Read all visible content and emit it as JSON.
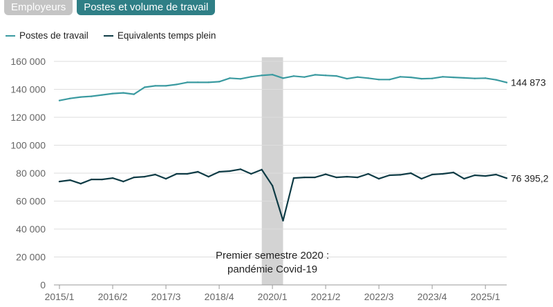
{
  "tabs": [
    {
      "label": "Employeurs",
      "active": false
    },
    {
      "label": "Postes et volume de travail",
      "active": true
    }
  ],
  "colors": {
    "postes": "#3a9aa0",
    "etp": "#0e3b45",
    "tab_active": "#2f7f86",
    "tab_inactive": "#c4c4c4",
    "covid_band": "#d3d3d3"
  },
  "chart_data": {
    "type": "line",
    "x": [
      "2015/1",
      "2015/2",
      "2015/3",
      "2015/4",
      "2016/1",
      "2016/2",
      "2016/3",
      "2016/4",
      "2017/1",
      "2017/2",
      "2017/3",
      "2017/4",
      "2018/1",
      "2018/2",
      "2018/3",
      "2018/4",
      "2019/1",
      "2019/2",
      "2019/3",
      "2019/4",
      "2020/1",
      "2020/2",
      "2020/3",
      "2020/4",
      "2021/1",
      "2021/2",
      "2021/3",
      "2021/4",
      "2022/1",
      "2022/2",
      "2022/3",
      "2022/4",
      "2023/1",
      "2023/2",
      "2023/3",
      "2023/4",
      "2024/1",
      "2024/2",
      "2024/3",
      "2024/4",
      "2025/1",
      "2025/2",
      "2025/3"
    ],
    "x_ticks": [
      "2015/1",
      "2016/2",
      "2017/3",
      "2018/4",
      "2020/1",
      "2021/2",
      "2022/3",
      "2023/4",
      "2025/1"
    ],
    "series": [
      {
        "name": "Postes de travail",
        "color": "#3a9aa0",
        "values": [
          132000,
          133500,
          134500,
          135000,
          136000,
          137000,
          137500,
          136500,
          141500,
          142500,
          142500,
          143500,
          145000,
          145000,
          145000,
          145500,
          148000,
          147500,
          149000,
          150000,
          150500,
          148000,
          149500,
          148800,
          150400,
          150000,
          149600,
          147600,
          148800,
          148000,
          147000,
          147000,
          149000,
          148600,
          147600,
          147800,
          149000,
          148600,
          148200,
          147800,
          148000,
          146800,
          144873
        ]
      },
      {
        "name": "Equivalents temps plein",
        "color": "#0e3b45",
        "values": [
          74000,
          75000,
          72500,
          75500,
          75500,
          76500,
          74000,
          77000,
          77500,
          79000,
          76000,
          79500,
          79500,
          81000,
          77500,
          81000,
          81500,
          82800,
          79500,
          82500,
          71000,
          46000,
          76500,
          77000,
          77000,
          79200,
          77000,
          77500,
          77000,
          79500,
          76000,
          78500,
          78800,
          80000,
          76000,
          79000,
          79500,
          80500,
          76000,
          78500,
          78000,
          79000,
          76395.2
        ]
      }
    ],
    "end_labels": [
      "144 873",
      "76 395,2"
    ],
    "y_ticks": [
      "0",
      "20 000",
      "40 000",
      "60 000",
      "80 000",
      "100 000",
      "120 000",
      "140 000",
      "160 000"
    ],
    "ylim": [
      0,
      160000
    ],
    "grid": true,
    "legend_position": "top-left",
    "highlight": {
      "from": "2019/4",
      "to": "2020/2"
    },
    "annotation": [
      "Premier semestre 2020 :",
      "pandémie Covid-19"
    ]
  }
}
